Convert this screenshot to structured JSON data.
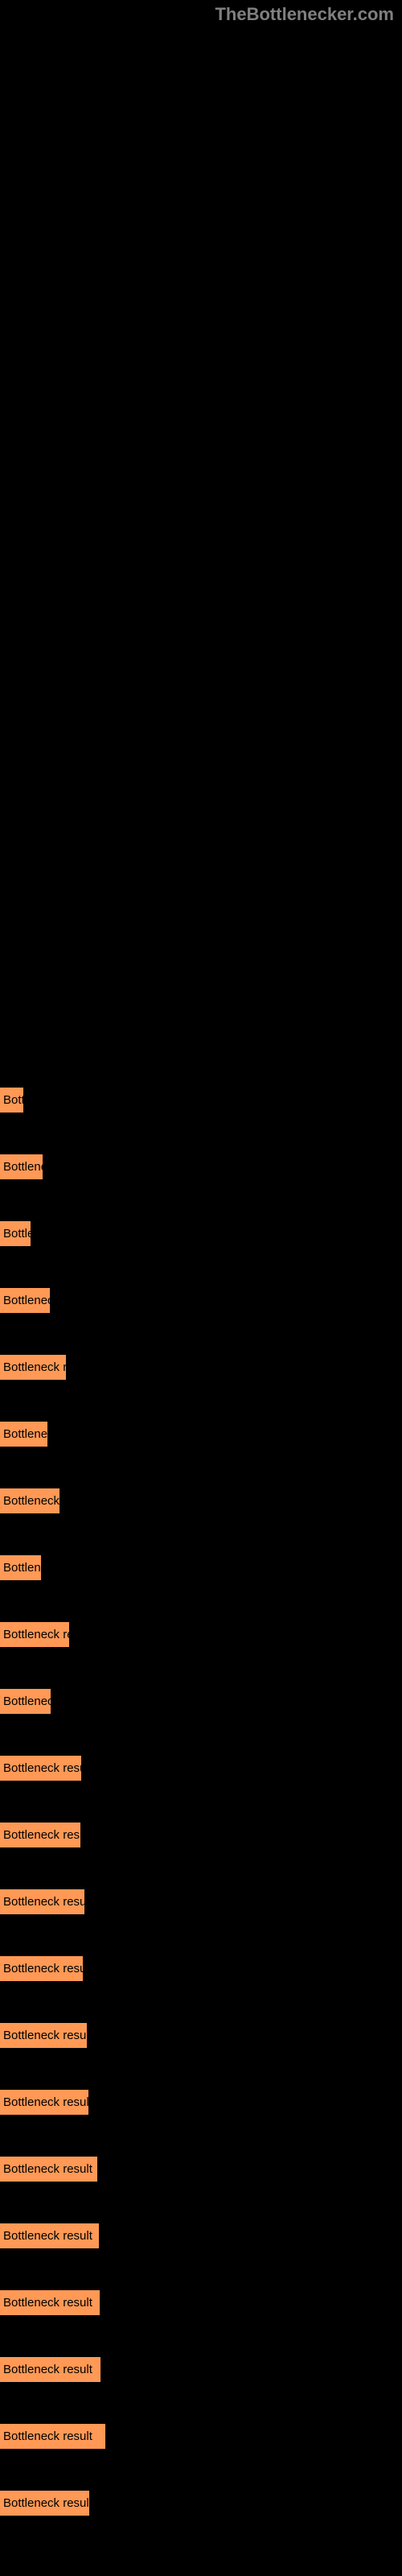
{
  "header": {
    "site_name": "TheBottlenecker.com"
  },
  "colors": {
    "background": "#000000",
    "bar_fill": "#ff9955",
    "bar_text": "#000000",
    "header_text": "#808080"
  },
  "results": [
    {
      "label": "Bott",
      "width": 29
    },
    {
      "label": "Bottlene",
      "width": 53
    },
    {
      "label": "Bottle",
      "width": 38
    },
    {
      "label": "Bottleneck",
      "width": 62
    },
    {
      "label": "Bottleneck re",
      "width": 82
    },
    {
      "label": "Bottleneck",
      "width": 59
    },
    {
      "label": "Bottleneck r",
      "width": 74
    },
    {
      "label": "Bottlene",
      "width": 51
    },
    {
      "label": "Bottleneck res",
      "width": 86
    },
    {
      "label": "Bottleneck",
      "width": 63
    },
    {
      "label": "Bottleneck result",
      "width": 101
    },
    {
      "label": "Bottleneck result",
      "width": 100
    },
    {
      "label": "Bottleneck result",
      "width": 105
    },
    {
      "label": "Bottleneck result",
      "width": 103
    },
    {
      "label": "Bottleneck result",
      "width": 108
    },
    {
      "label": "Bottleneck result",
      "width": 110
    },
    {
      "label": "Bottleneck result",
      "width": 121
    },
    {
      "label": "Bottleneck result",
      "width": 123
    },
    {
      "label": "Bottleneck result",
      "width": 124
    },
    {
      "label": "Bottleneck result",
      "width": 125
    },
    {
      "label": "Bottleneck result",
      "width": 131
    },
    {
      "label": "Bottleneck result",
      "width": 111
    }
  ]
}
